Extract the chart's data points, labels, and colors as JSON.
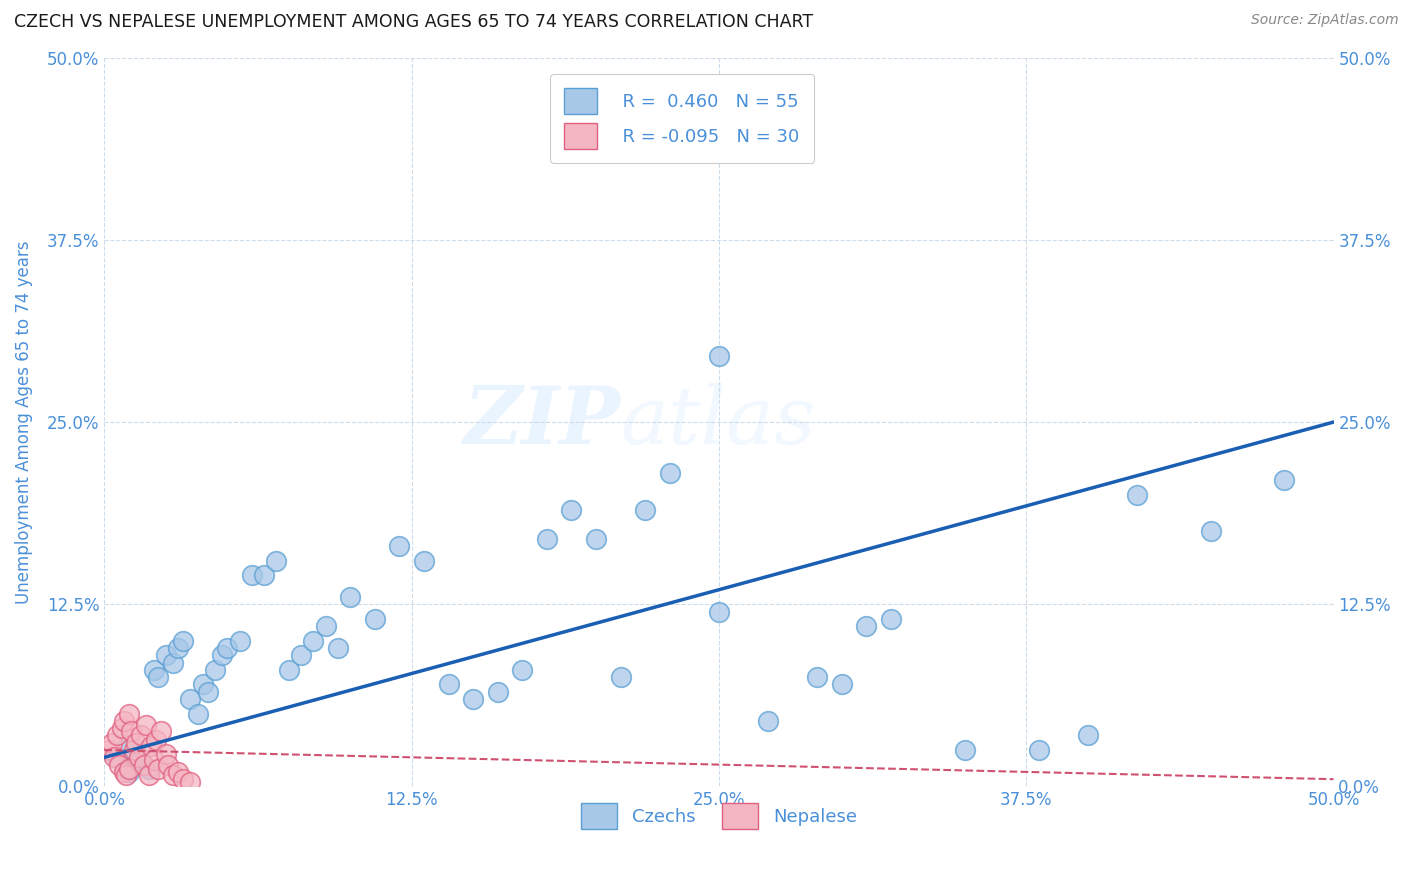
{
  "title": "CZECH VS NEPALESE UNEMPLOYMENT AMONG AGES 65 TO 74 YEARS CORRELATION CHART",
  "source": "Source: ZipAtlas.com",
  "ylabel": "Unemployment Among Ages 65 to 74 years",
  "xlim": [
    0.0,
    0.5
  ],
  "ylim": [
    0.0,
    0.5
  ],
  "xticks": [
    0.0,
    0.125,
    0.25,
    0.375,
    0.5
  ],
  "yticks": [
    0.0,
    0.125,
    0.25,
    0.375,
    0.5
  ],
  "xtick_labels": [
    "0.0%",
    "12.5%",
    "25.0%",
    "37.5%",
    "50.0%"
  ],
  "ytick_labels": [
    "0.0%",
    "12.5%",
    "25.0%",
    "37.5%",
    "50.0%"
  ],
  "czech_color": "#a8c8e8",
  "czech_edge_color": "#5a9fd4",
  "nepalese_color": "#f4b6c2",
  "nepalese_edge_color": "#e06080",
  "trendline_czech_color": "#1a5fb4",
  "trendline_nepal_color": "#d05070",
  "legend_R_czech": "R =  0.460",
  "legend_N_czech": "N = 55",
  "legend_R_nepal": "R = -0.095",
  "legend_N_nepal": "N = 30",
  "axis_color": "#4a90d9",
  "background_color": "#ffffff",
  "grid_color": "#c8d8e8",
  "watermark_zip": "ZIP",
  "watermark_atlas": "atlas",
  "czech_x": [
    0.005,
    0.008,
    0.01,
    0.012,
    0.015,
    0.018,
    0.02,
    0.022,
    0.025,
    0.028,
    0.03,
    0.032,
    0.035,
    0.038,
    0.04,
    0.042,
    0.045,
    0.048,
    0.05,
    0.055,
    0.06,
    0.065,
    0.07,
    0.075,
    0.08,
    0.085,
    0.09,
    0.095,
    0.1,
    0.11,
    0.12,
    0.13,
    0.14,
    0.15,
    0.16,
    0.17,
    0.18,
    0.19,
    0.2,
    0.21,
    0.22,
    0.23,
    0.25,
    0.27,
    0.29,
    0.3,
    0.31,
    0.32,
    0.35,
    0.38,
    0.4,
    0.42,
    0.45,
    0.48,
    0.25
  ],
  "czech_y": [
    0.02,
    0.025,
    0.01,
    0.015,
    0.018,
    0.012,
    0.08,
    0.075,
    0.09,
    0.085,
    0.095,
    0.1,
    0.06,
    0.05,
    0.07,
    0.065,
    0.08,
    0.09,
    0.095,
    0.1,
    0.145,
    0.145,
    0.155,
    0.08,
    0.09,
    0.1,
    0.11,
    0.095,
    0.13,
    0.115,
    0.165,
    0.155,
    0.07,
    0.06,
    0.065,
    0.08,
    0.17,
    0.19,
    0.17,
    0.075,
    0.19,
    0.215,
    0.12,
    0.045,
    0.075,
    0.07,
    0.11,
    0.115,
    0.025,
    0.025,
    0.035,
    0.2,
    0.175,
    0.21,
    0.295
  ],
  "nepal_x": [
    0.002,
    0.003,
    0.004,
    0.005,
    0.006,
    0.007,
    0.008,
    0.008,
    0.009,
    0.01,
    0.01,
    0.011,
    0.012,
    0.013,
    0.014,
    0.015,
    0.016,
    0.017,
    0.018,
    0.019,
    0.02,
    0.021,
    0.022,
    0.023,
    0.025,
    0.026,
    0.028,
    0.03,
    0.032,
    0.035
  ],
  "nepal_y": [
    0.025,
    0.03,
    0.02,
    0.035,
    0.015,
    0.04,
    0.01,
    0.045,
    0.008,
    0.05,
    0.012,
    0.038,
    0.025,
    0.03,
    0.02,
    0.035,
    0.015,
    0.042,
    0.008,
    0.028,
    0.018,
    0.032,
    0.012,
    0.038,
    0.022,
    0.015,
    0.008,
    0.01,
    0.005,
    0.003
  ],
  "czech_trendline_x": [
    0.0,
    0.5
  ],
  "czech_trendline_y": [
    0.02,
    0.25
  ],
  "nepal_trendline_x": [
    0.0,
    0.5
  ],
  "nepal_trendline_y": [
    0.025,
    0.005
  ]
}
